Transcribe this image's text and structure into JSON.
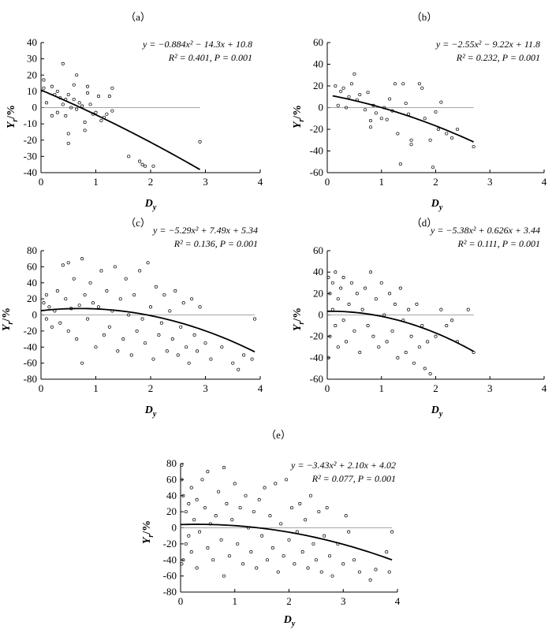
{
  "chart_data": [
    {
      "type": "scatter",
      "panel_label": "（a）",
      "xlabel": "D",
      "xlabel_sub": "y",
      "ylabel": "Y",
      "ylabel_sub": "r",
      "ylabel_unit": "/%",
      "xlim": [
        0,
        4
      ],
      "ylim": [
        -40,
        40
      ],
      "xticks": [
        0,
        1,
        2,
        3,
        4
      ],
      "yticks": [
        -40,
        -30,
        -20,
        -10,
        0,
        10,
        20,
        30,
        40
      ],
      "grid": false,
      "zero_line": true,
      "equation": "y = −0.884x² − 14.3x + 10.8",
      "stats": "R² = 0.401, P = 0.001",
      "fit": {
        "a": -0.884,
        "b": -14.3,
        "c": 10.8,
        "x_range": [
          0,
          2.9
        ]
      },
      "points": [
        [
          0.05,
          17
        ],
        [
          0.05,
          12
        ],
        [
          0.1,
          3
        ],
        [
          0.2,
          13
        ],
        [
          0.2,
          -5
        ],
        [
          0.25,
          8
        ],
        [
          0.3,
          10
        ],
        [
          0.3,
          -3
        ],
        [
          0.35,
          6
        ],
        [
          0.4,
          27
        ],
        [
          0.4,
          2
        ],
        [
          0.45,
          -5
        ],
        [
          0.45,
          5
        ],
        [
          0.5,
          8
        ],
        [
          0.5,
          -16
        ],
        [
          0.5,
          -22
        ],
        [
          0.55,
          0
        ],
        [
          0.6,
          5
        ],
        [
          0.6,
          14
        ],
        [
          0.65,
          -1
        ],
        [
          0.65,
          20
        ],
        [
          0.7,
          3
        ],
        [
          0.75,
          1
        ],
        [
          0.8,
          -9
        ],
        [
          0.8,
          -14
        ],
        [
          0.85,
          13
        ],
        [
          0.85,
          9
        ],
        [
          0.9,
          2
        ],
        [
          0.95,
          -4
        ],
        [
          1.0,
          -3
        ],
        [
          1.05,
          7
        ],
        [
          1.1,
          -8
        ],
        [
          1.15,
          -6
        ],
        [
          1.2,
          -4
        ],
        [
          1.25,
          7
        ],
        [
          1.3,
          12
        ],
        [
          1.3,
          -2
        ],
        [
          1.6,
          -30
        ],
        [
          1.8,
          -33
        ],
        [
          1.85,
          -35
        ],
        [
          1.9,
          -36
        ],
        [
          2.05,
          -36
        ],
        [
          2.9,
          -21
        ]
      ]
    },
    {
      "type": "scatter",
      "panel_label": "（b）",
      "xlabel": "D",
      "xlabel_sub": "y",
      "ylabel": "Y",
      "ylabel_sub": "r",
      "ylabel_unit": "/%",
      "xlim": [
        0,
        4
      ],
      "ylim": [
        -60,
        60
      ],
      "xticks": [
        0,
        1,
        2,
        3,
        4
      ],
      "yticks": [
        -60,
        -40,
        -20,
        0,
        20,
        40,
        60
      ],
      "grid": false,
      "zero_line": true,
      "equation": "y = −2.55x² − 9.22x + 11.8",
      "stats": "R² = 0.232, P = 0.001",
      "fit": {
        "a": -2.55,
        "b": -9.22,
        "c": 11.8,
        "x_range": [
          0.1,
          2.7
        ]
      },
      "points": [
        [
          0.15,
          20
        ],
        [
          0.2,
          2
        ],
        [
          0.25,
          15
        ],
        [
          0.3,
          18
        ],
        [
          0.35,
          0
        ],
        [
          0.4,
          10
        ],
        [
          0.45,
          22
        ],
        [
          0.5,
          31
        ],
        [
          0.55,
          7
        ],
        [
          0.6,
          12
        ],
        [
          0.7,
          -2
        ],
        [
          0.75,
          14
        ],
        [
          0.8,
          -18
        ],
        [
          0.8,
          -12
        ],
        [
          0.85,
          2
        ],
        [
          0.9,
          -5
        ],
        [
          1.0,
          -10
        ],
        [
          1.05,
          0
        ],
        [
          1.1,
          -11
        ],
        [
          1.15,
          8
        ],
        [
          1.2,
          -3
        ],
        [
          1.25,
          22
        ],
        [
          1.3,
          -24
        ],
        [
          1.35,
          -52
        ],
        [
          1.4,
          22
        ],
        [
          1.45,
          4
        ],
        [
          1.5,
          -6
        ],
        [
          1.55,
          -34
        ],
        [
          1.55,
          -30
        ],
        [
          1.7,
          22
        ],
        [
          1.75,
          18
        ],
        [
          1.8,
          -10
        ],
        [
          1.9,
          -30
        ],
        [
          1.95,
          -55
        ],
        [
          2.0,
          -4
        ],
        [
          2.05,
          -20
        ],
        [
          2.1,
          5
        ],
        [
          2.2,
          -24
        ],
        [
          2.3,
          -28
        ],
        [
          2.4,
          -20
        ],
        [
          2.7,
          -36
        ]
      ]
    },
    {
      "type": "scatter",
      "panel_label": "（c）",
      "xlabel": "D",
      "xlabel_sub": "y",
      "ylabel": "Y",
      "ylabel_sub": "r",
      "ylabel_unit": "/%",
      "xlim": [
        0,
        4
      ],
      "ylim": [
        -80,
        80
      ],
      "xticks": [
        0,
        1,
        2,
        3,
        4
      ],
      "yticks": [
        -80,
        -60,
        -40,
        -20,
        0,
        20,
        40,
        60,
        80
      ],
      "grid": false,
      "zero_line": true,
      "equation": "y = −5.29x² + 7.49x + 5.34",
      "stats": "R² = 0.136, P = 0.001",
      "fit": {
        "a": -5.29,
        "b": 7.49,
        "c": 5.34,
        "x_range": [
          0,
          3.9
        ]
      },
      "points": [
        [
          0.05,
          15
        ],
        [
          0.1,
          -5
        ],
        [
          0.1,
          25
        ],
        [
          0.15,
          10
        ],
        [
          0.2,
          -15
        ],
        [
          0.25,
          5
        ],
        [
          0.3,
          30
        ],
        [
          0.35,
          -10
        ],
        [
          0.4,
          62
        ],
        [
          0.45,
          20
        ],
        [
          0.5,
          -20
        ],
        [
          0.5,
          65
        ],
        [
          0.55,
          8
        ],
        [
          0.6,
          45
        ],
        [
          0.65,
          -30
        ],
        [
          0.7,
          12
        ],
        [
          0.75,
          -60
        ],
        [
          0.75,
          70
        ],
        [
          0.8,
          25
        ],
        [
          0.85,
          -5
        ],
        [
          0.9,
          40
        ],
        [
          0.95,
          15
        ],
        [
          1.0,
          -40
        ],
        [
          1.05,
          10
        ],
        [
          1.1,
          55
        ],
        [
          1.15,
          -25
        ],
        [
          1.2,
          30
        ],
        [
          1.25,
          -15
        ],
        [
          1.3,
          5
        ],
        [
          1.35,
          60
        ],
        [
          1.4,
          -45
        ],
        [
          1.45,
          20
        ],
        [
          1.5,
          -30
        ],
        [
          1.55,
          45
        ],
        [
          1.6,
          0
        ],
        [
          1.65,
          -50
        ],
        [
          1.7,
          25
        ],
        [
          1.75,
          -20
        ],
        [
          1.8,
          55
        ],
        [
          1.85,
          -5
        ],
        [
          1.9,
          -35
        ],
        [
          1.95,
          65
        ],
        [
          2.0,
          10
        ],
        [
          2.05,
          -55
        ],
        [
          2.1,
          35
        ],
        [
          2.15,
          -25
        ],
        [
          2.2,
          -10
        ],
        [
          2.25,
          25
        ],
        [
          2.3,
          -45
        ],
        [
          2.35,
          5
        ],
        [
          2.4,
          -30
        ],
        [
          2.45,
          30
        ],
        [
          2.5,
          -50
        ],
        [
          2.55,
          -15
        ],
        [
          2.6,
          15
        ],
        [
          2.65,
          -40
        ],
        [
          2.7,
          -60
        ],
        [
          2.75,
          20
        ],
        [
          2.8,
          -25
        ],
        [
          2.85,
          -45
        ],
        [
          2.9,
          10
        ],
        [
          3.0,
          -35
        ],
        [
          3.1,
          -55
        ],
        [
          3.3,
          -40
        ],
        [
          3.5,
          -60
        ],
        [
          3.6,
          -68
        ],
        [
          3.7,
          -50
        ],
        [
          3.85,
          -55
        ],
        [
          3.9,
          -5
        ]
      ]
    },
    {
      "type": "scatter",
      "panel_label": "（d）",
      "xlabel": "D",
      "xlabel_sub": "y",
      "ylabel": "Y",
      "ylabel_sub": "r",
      "ylabel_unit": "/%",
      "xlim": [
        0,
        4
      ],
      "ylim": [
        -60,
        60
      ],
      "xticks": [
        0,
        1,
        2,
        3,
        4
      ],
      "yticks": [
        -60,
        -40,
        -20,
        0,
        20,
        40,
        60
      ],
      "grid": false,
      "zero_line": true,
      "equation": "y = −5.38x² + 0.626x + 3.44",
      "stats": "R² = 0.111, P = 0.001",
      "fit": {
        "a": -5.38,
        "b": 0.626,
        "c": 3.44,
        "x_range": [
          0,
          2.7
        ]
      },
      "points": [
        [
          0.02,
          35
        ],
        [
          0.02,
          -40
        ],
        [
          0.05,
          20
        ],
        [
          0.05,
          -20
        ],
        [
          0.1,
          30
        ],
        [
          0.1,
          5
        ],
        [
          0.15,
          -10
        ],
        [
          0.15,
          40
        ],
        [
          0.2,
          15
        ],
        [
          0.2,
          -30
        ],
        [
          0.25,
          25
        ],
        [
          0.3,
          -5
        ],
        [
          0.3,
          35
        ],
        [
          0.35,
          -25
        ],
        [
          0.4,
          10
        ],
        [
          0.45,
          30
        ],
        [
          0.5,
          -15
        ],
        [
          0.55,
          20
        ],
        [
          0.6,
          -35
        ],
        [
          0.65,
          5
        ],
        [
          0.7,
          25
        ],
        [
          0.75,
          -10
        ],
        [
          0.8,
          40
        ],
        [
          0.85,
          -20
        ],
        [
          0.9,
          15
        ],
        [
          0.95,
          -30
        ],
        [
          1.0,
          30
        ],
        [
          1.05,
          0
        ],
        [
          1.1,
          -25
        ],
        [
          1.15,
          20
        ],
        [
          1.2,
          -15
        ],
        [
          1.25,
          10
        ],
        [
          1.3,
          -40
        ],
        [
          1.35,
          25
        ],
        [
          1.4,
          -5
        ],
        [
          1.45,
          -35
        ],
        [
          1.5,
          5
        ],
        [
          1.55,
          -20
        ],
        [
          1.6,
          -45
        ],
        [
          1.65,
          10
        ],
        [
          1.7,
          -30
        ],
        [
          1.75,
          -10
        ],
        [
          1.8,
          -50
        ],
        [
          1.85,
          -25
        ],
        [
          1.9,
          -55
        ],
        [
          2.0,
          -20
        ],
        [
          2.1,
          5
        ],
        [
          2.2,
          -10
        ],
        [
          2.3,
          -5
        ],
        [
          2.4,
          -25
        ],
        [
          2.6,
          5
        ],
        [
          2.7,
          -35
        ]
      ]
    },
    {
      "type": "scatter",
      "panel_label": "（e）",
      "xlabel": "D",
      "xlabel_sub": "y",
      "ylabel": "Y",
      "ylabel_sub": "r",
      "ylabel_unit": "/%",
      "xlim": [
        0,
        4
      ],
      "ylim": [
        -80,
        80
      ],
      "xticks": [
        0,
        1,
        2,
        3,
        4
      ],
      "yticks": [
        -80,
        -60,
        -40,
        -20,
        0,
        20,
        40,
        60,
        80
      ],
      "grid": false,
      "zero_line": true,
      "equation": "y = −3.43x² + 2.10x + 4.02",
      "stats": "R² = 0.077, P = 0.001",
      "fit": {
        "a": -3.43,
        "b": 2.1,
        "c": 4.02,
        "x_range": [
          0,
          3.9
        ]
      },
      "points": [
        [
          0.02,
          78
        ],
        [
          0.02,
          60
        ],
        [
          0.02,
          -45
        ],
        [
          0.05,
          40
        ],
        [
          0.05,
          -40
        ],
        [
          0.1,
          20
        ],
        [
          0.1,
          -20
        ],
        [
          0.15,
          30
        ],
        [
          0.15,
          -10
        ],
        [
          0.2,
          50
        ],
        [
          0.2,
          -30
        ],
        [
          0.25,
          10
        ],
        [
          0.3,
          -50
        ],
        [
          0.3,
          35
        ],
        [
          0.35,
          -5
        ],
        [
          0.4,
          60
        ],
        [
          0.45,
          25
        ],
        [
          0.5,
          -25
        ],
        [
          0.5,
          70
        ],
        [
          0.55,
          5
        ],
        [
          0.6,
          -40
        ],
        [
          0.65,
          15
        ],
        [
          0.7,
          45
        ],
        [
          0.75,
          -15
        ],
        [
          0.8,
          -60
        ],
        [
          0.8,
          75
        ],
        [
          0.85,
          30
        ],
        [
          0.9,
          -35
        ],
        [
          0.95,
          10
        ],
        [
          1.0,
          55
        ],
        [
          1.05,
          -20
        ],
        [
          1.1,
          25
        ],
        [
          1.15,
          -45
        ],
        [
          1.2,
          40
        ],
        [
          1.25,
          0
        ],
        [
          1.3,
          -30
        ],
        [
          1.35,
          20
        ],
        [
          1.4,
          -50
        ],
        [
          1.45,
          35
        ],
        [
          1.5,
          -10
        ],
        [
          1.55,
          50
        ],
        [
          1.6,
          -40
        ],
        [
          1.65,
          15
        ],
        [
          1.7,
          -25
        ],
        [
          1.75,
          55
        ],
        [
          1.8,
          -55
        ],
        [
          1.85,
          5
        ],
        [
          1.9,
          -35
        ],
        [
          1.95,
          60
        ],
        [
          2.0,
          -15
        ],
        [
          2.05,
          25
        ],
        [
          2.1,
          -45
        ],
        [
          2.15,
          -5
        ],
        [
          2.2,
          30
        ],
        [
          2.25,
          -30
        ],
        [
          2.3,
          10
        ],
        [
          2.35,
          -50
        ],
        [
          2.4,
          40
        ],
        [
          2.45,
          -20
        ],
        [
          2.5,
          -40
        ],
        [
          2.55,
          20
        ],
        [
          2.6,
          -55
        ],
        [
          2.65,
          -10
        ],
        [
          2.7,
          25
        ],
        [
          2.75,
          -35
        ],
        [
          2.8,
          -60
        ],
        [
          2.9,
          -20
        ],
        [
          3.0,
          -45
        ],
        [
          3.05,
          15
        ],
        [
          3.1,
          -5
        ],
        [
          3.2,
          -40
        ],
        [
          3.3,
          -55
        ],
        [
          3.5,
          -65
        ],
        [
          3.6,
          -52
        ],
        [
          3.8,
          -30
        ],
        [
          3.85,
          -55
        ],
        [
          3.9,
          -5
        ]
      ]
    }
  ]
}
